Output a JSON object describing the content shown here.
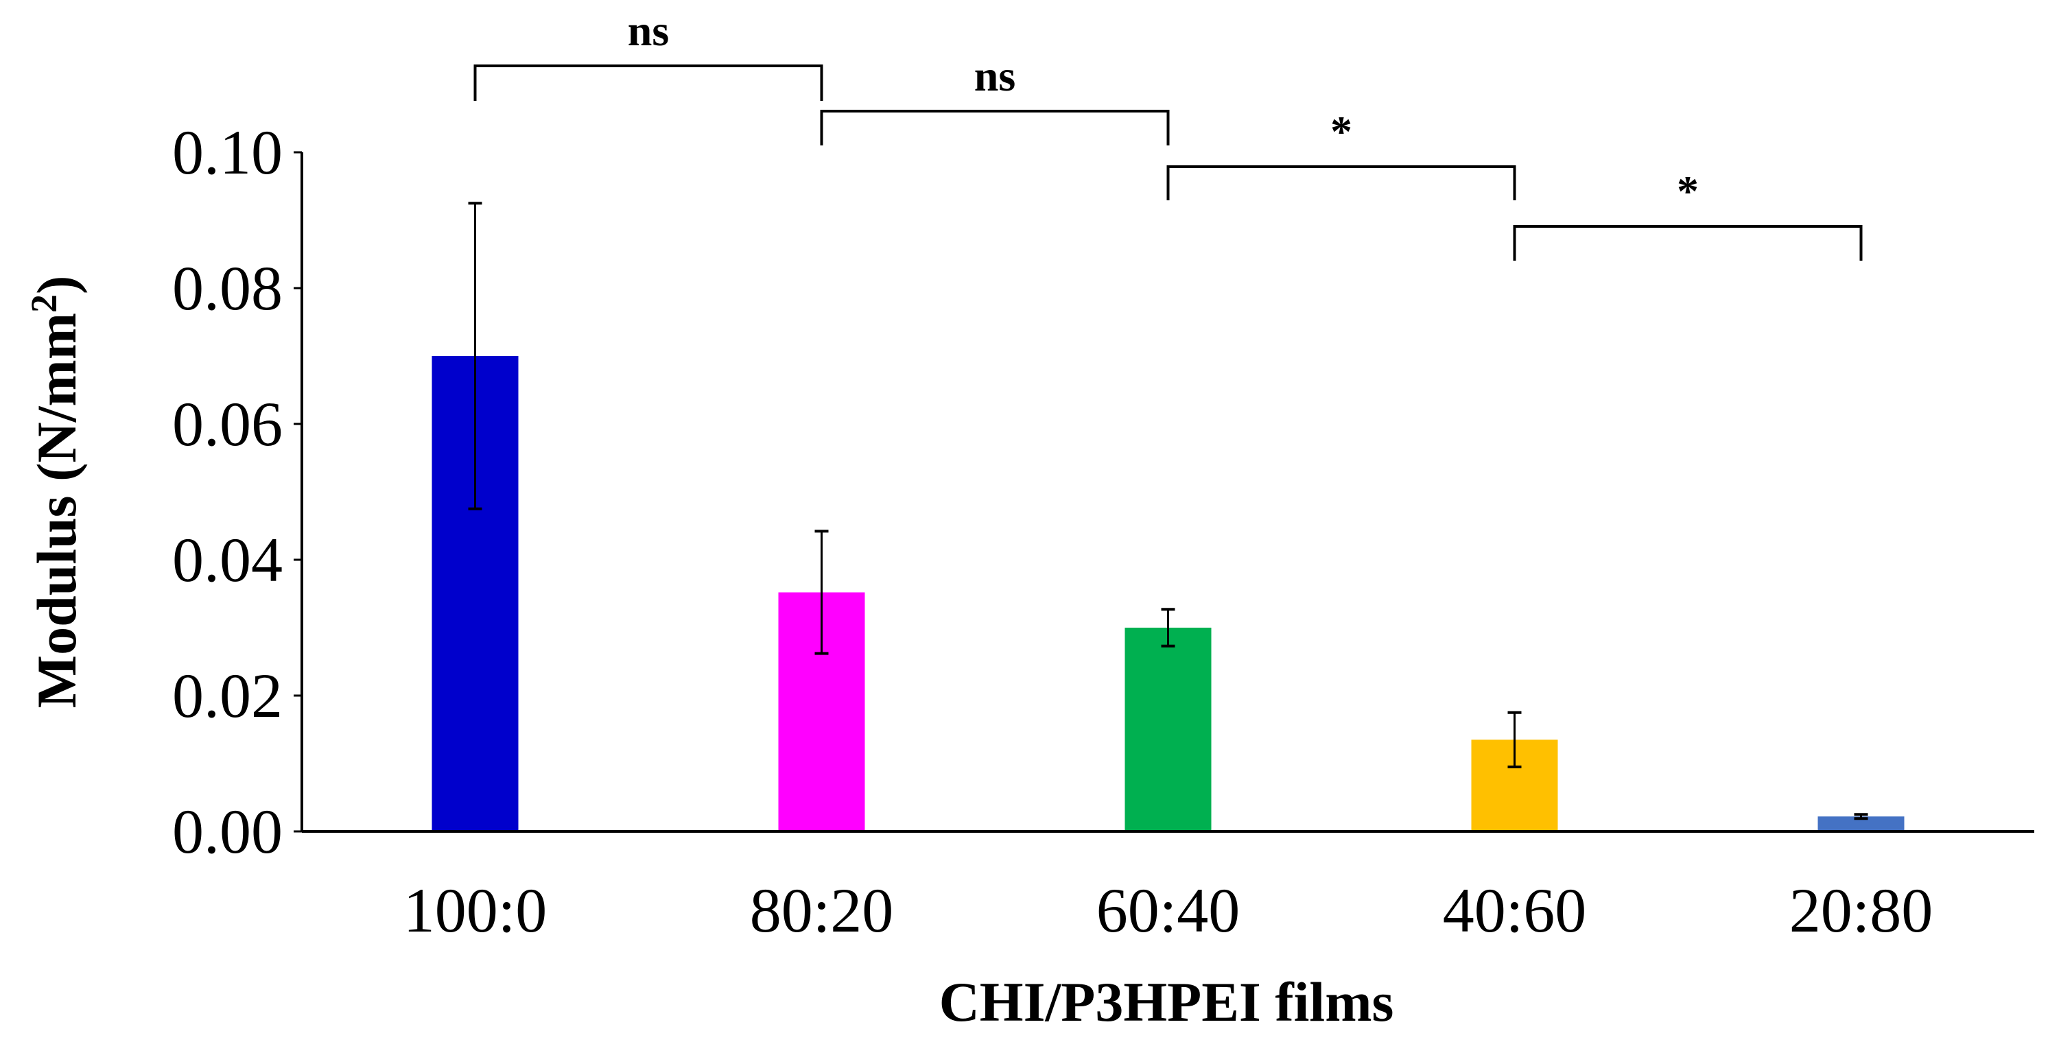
{
  "chart_data": {
    "type": "bar",
    "title": "",
    "xlabel": "CHI/P3HPEI films",
    "ylabel_main": "Modulus (N/mm",
    "ylabel_sup": "2",
    "ylabel_close": ")",
    "ylim": [
      0,
      0.1
    ],
    "yticks": [
      "0.00",
      "0.02",
      "0.04",
      "0.06",
      "0.08",
      "0.10"
    ],
    "grid": false,
    "categories": [
      "100:0",
      "80:20",
      "60:40",
      "40:60",
      "20:80"
    ],
    "values": [
      0.07,
      0.0352,
      0.03,
      0.0135,
      0.0022
    ],
    "errors": [
      0.0225,
      0.009,
      0.0027,
      0.004,
      0.0003
    ],
    "colors": [
      "#0000CC",
      "#FF00FF",
      "#00B050",
      "#FFC000",
      "#4472C4"
    ],
    "significance": [
      {
        "from": 0,
        "to": 1,
        "label": "ns"
      },
      {
        "from": 1,
        "to": 2,
        "label": "ns"
      },
      {
        "from": 2,
        "to": 3,
        "label": "*"
      },
      {
        "from": 3,
        "to": 4,
        "label": "*"
      }
    ]
  }
}
